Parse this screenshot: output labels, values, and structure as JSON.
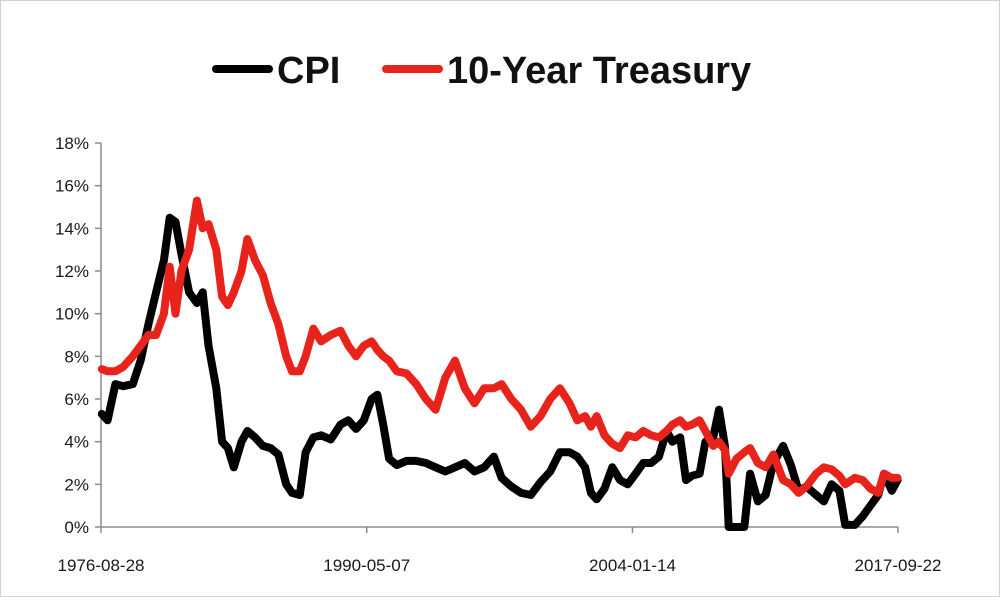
{
  "chart_data": {
    "type": "line",
    "title": "",
    "xlabel": "",
    "ylabel": "",
    "ylim": [
      0,
      18
    ],
    "y_ticks": [
      0,
      2,
      4,
      6,
      8,
      10,
      12,
      14,
      16,
      18
    ],
    "y_tick_labels": [
      "0%",
      "2%",
      "4%",
      "6%",
      "8%",
      "10%",
      "12%",
      "14%",
      "16%",
      "18%"
    ],
    "x_range": [
      1976.66,
      2017.72
    ],
    "x_ticks": [
      1976.66,
      1990.35,
      2004.04,
      2017.72
    ],
    "x_tick_labels": [
      "1976-08-28",
      "1990-05-07",
      "2004-01-14",
      "2017-09-22"
    ],
    "legend_position": "top",
    "grid": false,
    "series": [
      {
        "name": "CPI",
        "color": "#000000",
        "points": [
          [
            1976.7,
            5.3
          ],
          [
            1977.0,
            5.0
          ],
          [
            1977.4,
            6.7
          ],
          [
            1977.8,
            6.6
          ],
          [
            1978.3,
            6.7
          ],
          [
            1978.7,
            7.8
          ],
          [
            1979.1,
            9.5
          ],
          [
            1979.5,
            11.0
          ],
          [
            1979.9,
            12.5
          ],
          [
            1980.2,
            14.5
          ],
          [
            1980.5,
            14.3
          ],
          [
            1980.8,
            12.8
          ],
          [
            1981.2,
            11.0
          ],
          [
            1981.6,
            10.5
          ],
          [
            1981.9,
            11.0
          ],
          [
            1982.2,
            8.5
          ],
          [
            1982.6,
            6.5
          ],
          [
            1982.9,
            4.0
          ],
          [
            1983.2,
            3.7
          ],
          [
            1983.5,
            2.8
          ],
          [
            1983.9,
            4.0
          ],
          [
            1984.2,
            4.5
          ],
          [
            1984.6,
            4.2
          ],
          [
            1985.0,
            3.8
          ],
          [
            1985.4,
            3.7
          ],
          [
            1985.8,
            3.4
          ],
          [
            1986.2,
            2.0
          ],
          [
            1986.5,
            1.6
          ],
          [
            1986.9,
            1.5
          ],
          [
            1987.2,
            3.5
          ],
          [
            1987.6,
            4.2
          ],
          [
            1988.0,
            4.3
          ],
          [
            1988.5,
            4.1
          ],
          [
            1989.0,
            4.8
          ],
          [
            1989.4,
            5.0
          ],
          [
            1989.8,
            4.6
          ],
          [
            1990.2,
            5.0
          ],
          [
            1990.6,
            6.0
          ],
          [
            1990.9,
            6.2
          ],
          [
            1991.2,
            4.8
          ],
          [
            1991.5,
            3.2
          ],
          [
            1991.9,
            2.9
          ],
          [
            1992.4,
            3.1
          ],
          [
            1992.9,
            3.1
          ],
          [
            1993.4,
            3.0
          ],
          [
            1993.9,
            2.8
          ],
          [
            1994.4,
            2.6
          ],
          [
            1994.9,
            2.8
          ],
          [
            1995.4,
            3.0
          ],
          [
            1995.9,
            2.6
          ],
          [
            1996.4,
            2.8
          ],
          [
            1996.9,
            3.3
          ],
          [
            1997.3,
            2.3
          ],
          [
            1997.8,
            1.9
          ],
          [
            1998.3,
            1.6
          ],
          [
            1998.8,
            1.5
          ],
          [
            1999.3,
            2.1
          ],
          [
            1999.8,
            2.6
          ],
          [
            2000.3,
            3.5
          ],
          [
            2000.8,
            3.5
          ],
          [
            2001.2,
            3.3
          ],
          [
            2001.6,
            2.8
          ],
          [
            2001.9,
            1.6
          ],
          [
            2002.2,
            1.3
          ],
          [
            2002.6,
            1.8
          ],
          [
            2003.0,
            2.8
          ],
          [
            2003.4,
            2.2
          ],
          [
            2003.8,
            2.0
          ],
          [
            2004.2,
            2.5
          ],
          [
            2004.6,
            3.0
          ],
          [
            2005.0,
            3.0
          ],
          [
            2005.4,
            3.3
          ],
          [
            2005.8,
            4.5
          ],
          [
            2006.1,
            4.0
          ],
          [
            2006.5,
            4.2
          ],
          [
            2006.8,
            2.2
          ],
          [
            2007.1,
            2.4
          ],
          [
            2007.5,
            2.5
          ],
          [
            2007.8,
            4.0
          ],
          [
            2008.2,
            4.2
          ],
          [
            2008.5,
            5.5
          ],
          [
            2008.8,
            3.8
          ],
          [
            2009.0,
            0.0
          ],
          [
            2009.4,
            0.0
          ],
          [
            2009.8,
            0.0
          ],
          [
            2010.1,
            2.5
          ],
          [
            2010.5,
            1.2
          ],
          [
            2010.9,
            1.5
          ],
          [
            2011.3,
            3.0
          ],
          [
            2011.8,
            3.8
          ],
          [
            2012.2,
            2.9
          ],
          [
            2012.6,
            1.7
          ],
          [
            2013.0,
            1.9
          ],
          [
            2013.5,
            1.5
          ],
          [
            2013.9,
            1.2
          ],
          [
            2014.3,
            2.0
          ],
          [
            2014.7,
            1.7
          ],
          [
            2015.0,
            0.1
          ],
          [
            2015.5,
            0.1
          ],
          [
            2015.9,
            0.5
          ],
          [
            2016.3,
            1.0
          ],
          [
            2016.7,
            1.5
          ],
          [
            2017.0,
            2.5
          ],
          [
            2017.4,
            1.7
          ],
          [
            2017.7,
            2.2
          ]
        ]
      },
      {
        "name": "10-Year Treasury",
        "color": "#e8231c",
        "points": [
          [
            1976.7,
            7.4
          ],
          [
            1977.0,
            7.3
          ],
          [
            1977.4,
            7.3
          ],
          [
            1977.8,
            7.5
          ],
          [
            1978.3,
            8.0
          ],
          [
            1978.7,
            8.5
          ],
          [
            1979.1,
            9.0
          ],
          [
            1979.5,
            9.0
          ],
          [
            1979.9,
            10.0
          ],
          [
            1980.2,
            12.2
          ],
          [
            1980.5,
            10.0
          ],
          [
            1980.8,
            12.0
          ],
          [
            1981.2,
            13.0
          ],
          [
            1981.6,
            15.3
          ],
          [
            1981.9,
            14.0
          ],
          [
            1982.2,
            14.2
          ],
          [
            1982.6,
            13.0
          ],
          [
            1982.9,
            10.8
          ],
          [
            1983.2,
            10.4
          ],
          [
            1983.5,
            11.0
          ],
          [
            1983.9,
            12.0
          ],
          [
            1984.2,
            13.5
          ],
          [
            1984.6,
            12.5
          ],
          [
            1985.0,
            11.8
          ],
          [
            1985.4,
            10.5
          ],
          [
            1985.8,
            9.5
          ],
          [
            1986.2,
            8.0
          ],
          [
            1986.5,
            7.3
          ],
          [
            1986.9,
            7.3
          ],
          [
            1987.2,
            8.0
          ],
          [
            1987.6,
            9.3
          ],
          [
            1988.0,
            8.7
          ],
          [
            1988.5,
            9.0
          ],
          [
            1989.0,
            9.2
          ],
          [
            1989.4,
            8.5
          ],
          [
            1989.8,
            8.0
          ],
          [
            1990.2,
            8.5
          ],
          [
            1990.6,
            8.7
          ],
          [
            1990.9,
            8.3
          ],
          [
            1991.2,
            8.0
          ],
          [
            1991.5,
            7.8
          ],
          [
            1991.9,
            7.3
          ],
          [
            1992.4,
            7.2
          ],
          [
            1992.9,
            6.7
          ],
          [
            1993.4,
            6.0
          ],
          [
            1993.9,
            5.5
          ],
          [
            1994.4,
            7.0
          ],
          [
            1994.9,
            7.8
          ],
          [
            1995.4,
            6.5
          ],
          [
            1995.9,
            5.8
          ],
          [
            1996.4,
            6.5
          ],
          [
            1996.9,
            6.5
          ],
          [
            1997.3,
            6.7
          ],
          [
            1997.8,
            6.0
          ],
          [
            1998.3,
            5.5
          ],
          [
            1998.8,
            4.7
          ],
          [
            1999.3,
            5.2
          ],
          [
            1999.8,
            6.0
          ],
          [
            2000.3,
            6.5
          ],
          [
            2000.8,
            5.8
          ],
          [
            2001.2,
            5.0
          ],
          [
            2001.6,
            5.2
          ],
          [
            2001.9,
            4.7
          ],
          [
            2002.2,
            5.2
          ],
          [
            2002.6,
            4.3
          ],
          [
            2003.0,
            3.9
          ],
          [
            2003.4,
            3.7
          ],
          [
            2003.8,
            4.3
          ],
          [
            2004.2,
            4.2
          ],
          [
            2004.6,
            4.5
          ],
          [
            2005.0,
            4.3
          ],
          [
            2005.4,
            4.2
          ],
          [
            2005.8,
            4.5
          ],
          [
            2006.1,
            4.8
          ],
          [
            2006.5,
            5.0
          ],
          [
            2006.8,
            4.7
          ],
          [
            2007.1,
            4.8
          ],
          [
            2007.5,
            5.0
          ],
          [
            2007.8,
            4.5
          ],
          [
            2008.2,
            3.8
          ],
          [
            2008.5,
            4.0
          ],
          [
            2008.8,
            3.6
          ],
          [
            2009.0,
            2.5
          ],
          [
            2009.4,
            3.2
          ],
          [
            2009.8,
            3.5
          ],
          [
            2010.1,
            3.7
          ],
          [
            2010.5,
            3.0
          ],
          [
            2010.9,
            2.8
          ],
          [
            2011.3,
            3.4
          ],
          [
            2011.8,
            2.2
          ],
          [
            2012.2,
            2.0
          ],
          [
            2012.6,
            1.6
          ],
          [
            2013.0,
            1.9
          ],
          [
            2013.5,
            2.5
          ],
          [
            2013.9,
            2.8
          ],
          [
            2014.3,
            2.7
          ],
          [
            2014.7,
            2.4
          ],
          [
            2015.0,
            2.0
          ],
          [
            2015.5,
            2.3
          ],
          [
            2015.9,
            2.2
          ],
          [
            2016.3,
            1.8
          ],
          [
            2016.7,
            1.6
          ],
          [
            2017.0,
            2.5
          ],
          [
            2017.4,
            2.3
          ],
          [
            2017.7,
            2.3
          ]
        ]
      }
    ]
  }
}
